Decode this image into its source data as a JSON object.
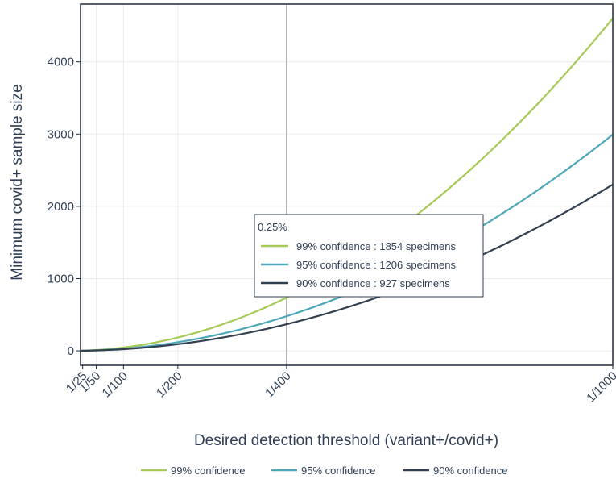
{
  "chart_data": {
    "type": "line",
    "xlabel": "Desired detection threshold (variant+/covid+)",
    "ylabel": "Minimum covid+ sample size",
    "x_scale": "reciprocal",
    "x_ticks": [
      {
        "label": "1/25",
        "value": 0.04
      },
      {
        "label": "1/50",
        "value": 0.02
      },
      {
        "label": "1/100",
        "value": 0.01
      },
      {
        "label": "1/200",
        "value": 0.005
      },
      {
        "label": "1/400",
        "value": 0.0025
      },
      {
        "label": "1/1000",
        "value": 0.001
      }
    ],
    "xlim": [
      0.0476,
      0.001
    ],
    "ylim": [
      -200,
      4800
    ],
    "y_ticks": [
      0,
      1000,
      2000,
      3000,
      4000
    ],
    "y_tick_labels": [
      "0",
      "1000",
      "2000",
      "3000",
      "4000"
    ],
    "grid": true,
    "x": [
      0.0476,
      0.04,
      0.02,
      0.01,
      0.005,
      0.0025,
      0.001
    ],
    "series": [
      {
        "name": "99% confidence",
        "color": "#a7c957",
        "values": [
          95,
          113,
          228,
          458,
          920,
          1854,
          4603
        ]
      },
      {
        "name": "95% confidence",
        "color": "#4fa8b8",
        "values": [
          62,
          73,
          148,
          298,
          598,
          1206,
          2994
        ]
      },
      {
        "name": "90% confidence",
        "color": "#334050",
        "values": [
          48,
          56,
          114,
          229,
          459,
          927,
          2302
        ]
      }
    ],
    "vertical_line": {
      "x": 0.0025,
      "color": "#aaaaaa"
    },
    "hover": {
      "title": "0.25%",
      "items": [
        {
          "label": "99% confidence : 1854 specimens",
          "color": "#a7c957"
        },
        {
          "label": "95% confidence : 1206 specimens",
          "color": "#4fa8b8"
        },
        {
          "label": "90% confidence : 927 specimens",
          "color": "#334050"
        }
      ]
    },
    "legend_position": "bottom-center"
  }
}
